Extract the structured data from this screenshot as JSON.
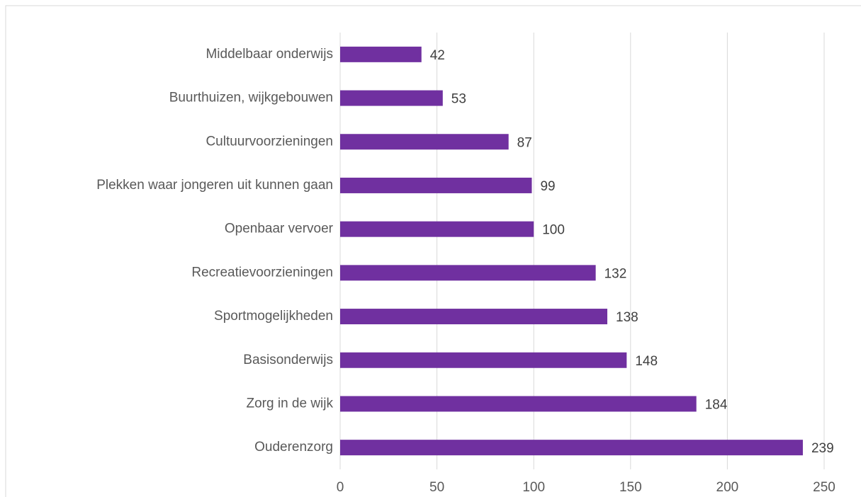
{
  "chart_data": {
    "type": "barh",
    "categories": [
      "Middelbaar onderwijs",
      "Buurthuizen, wijkgebouwen",
      "Cultuurvoorzieningen",
      "Plekken waar jongeren uit kunnen gaan",
      "Openbaar vervoer",
      "Recreatievoorzieningen",
      "Sportmogelijkheden",
      "Basisonderwijs",
      "Zorg in de wijk",
      "Ouderenzorg"
    ],
    "values": [
      42,
      53,
      87,
      99,
      100,
      132,
      138,
      148,
      184,
      239
    ],
    "color": "#7030a0",
    "xlim": [
      0,
      250
    ],
    "xticks": [
      0,
      50,
      100,
      150,
      200,
      250
    ],
    "grid": true
  }
}
